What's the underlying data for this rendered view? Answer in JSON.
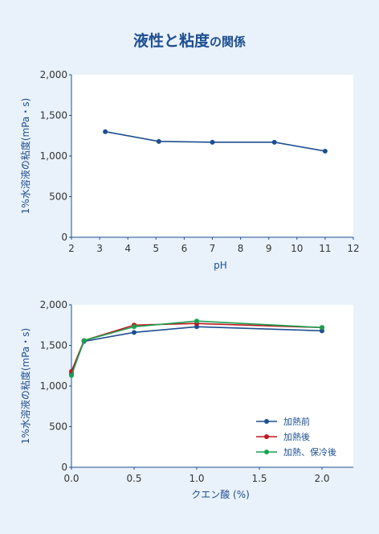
{
  "title": {
    "main": "液性と粘度",
    "suffix": "の関係"
  },
  "chart_data": [
    {
      "type": "line",
      "xlabel": "pH",
      "ylabel": "1%水溶液の粘度(mPa・s)",
      "xlim": [
        2,
        12
      ],
      "ylim": [
        0,
        2000
      ],
      "x_ticks": [
        2,
        3,
        4,
        5,
        6,
        7,
        8,
        9,
        10,
        11,
        12
      ],
      "y_ticks": [
        "0",
        "500",
        "1,000",
        "1,500",
        "2,000"
      ],
      "y_tick_values": [
        0,
        500,
        1000,
        1500,
        2000
      ],
      "grid": false,
      "series": [
        {
          "color": "#1d4f91",
          "x": [
            3.2,
            5.1,
            7.0,
            9.2,
            11.0
          ],
          "y": [
            1300,
            1180,
            1170,
            1170,
            1060
          ]
        }
      ]
    },
    {
      "type": "line",
      "xlabel": "クエン酸 (%)",
      "ylabel": "1%水溶液の粘度(mPa・s)",
      "xlim": [
        0,
        2.25
      ],
      "ylim": [
        0,
        2000
      ],
      "x_ticks": [
        "0.0",
        "0.5",
        "1.0",
        "1.5",
        "2.0"
      ],
      "x_tick_values": [
        0,
        0.5,
        1.0,
        1.5,
        2.0
      ],
      "y_ticks": [
        "0",
        "500",
        "1,000",
        "1,500",
        "2,000"
      ],
      "y_tick_values": [
        0,
        500,
        1000,
        1500,
        2000
      ],
      "grid": false,
      "legend_position": "bottom-right",
      "series": [
        {
          "name": "加熱前",
          "color": "#1d4f91",
          "x": [
            0,
            0.1,
            0.5,
            1.0,
            2.0
          ],
          "y": [
            1150,
            1550,
            1660,
            1730,
            1680
          ]
        },
        {
          "name": "加熱後",
          "color": "#c0171d",
          "x": [
            0,
            0.1,
            0.5,
            1.0,
            2.0
          ],
          "y": [
            1180,
            1560,
            1750,
            1770,
            1720
          ]
        },
        {
          "name": "加熱、保冷後",
          "color": "#19a150",
          "x": [
            0,
            0.1,
            0.5,
            1.0,
            2.0
          ],
          "y": [
            1130,
            1560,
            1730,
            1800,
            1720
          ]
        }
      ]
    }
  ]
}
